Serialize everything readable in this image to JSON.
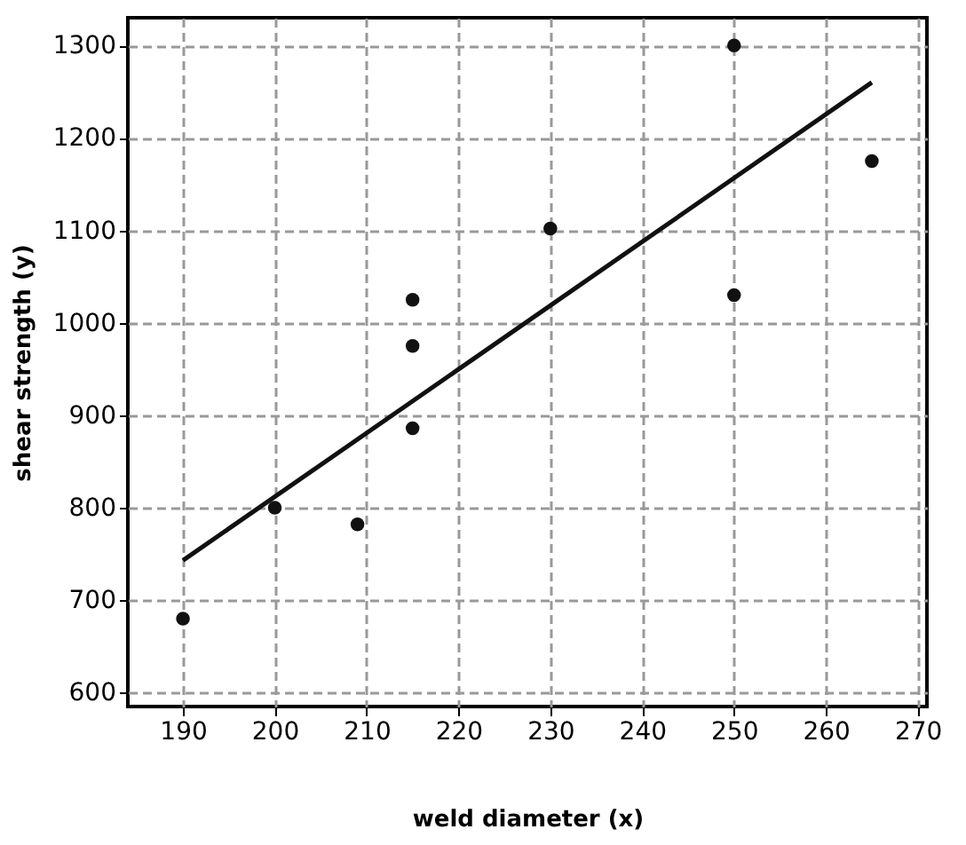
{
  "chart_data": {
    "type": "scatter",
    "xlabel": "weld diameter (x)",
    "ylabel": "shear strength (y)",
    "xlim": [
      184,
      271
    ],
    "ylim": [
      585,
      1330
    ],
    "xticks": [
      190,
      200,
      210,
      220,
      230,
      240,
      250,
      260,
      270
    ],
    "yticks": [
      600,
      700,
      800,
      900,
      1000,
      1100,
      1200,
      1300
    ],
    "grid": true,
    "series": [
      {
        "type": "scatter",
        "marker": "circle",
        "color": "#111111",
        "x": [
          190,
          200,
          209,
          215,
          215,
          215,
          230,
          250,
          250,
          265
        ],
        "values": [
          680,
          800,
          782,
          1025,
          975,
          886,
          1102,
          1300,
          1030,
          1175
        ]
      },
      {
        "type": "line",
        "marker": "none",
        "line_style": "solid",
        "color": "#111111",
        "x": [
          190,
          265
        ],
        "values": [
          743,
          1260
        ]
      }
    ]
  }
}
